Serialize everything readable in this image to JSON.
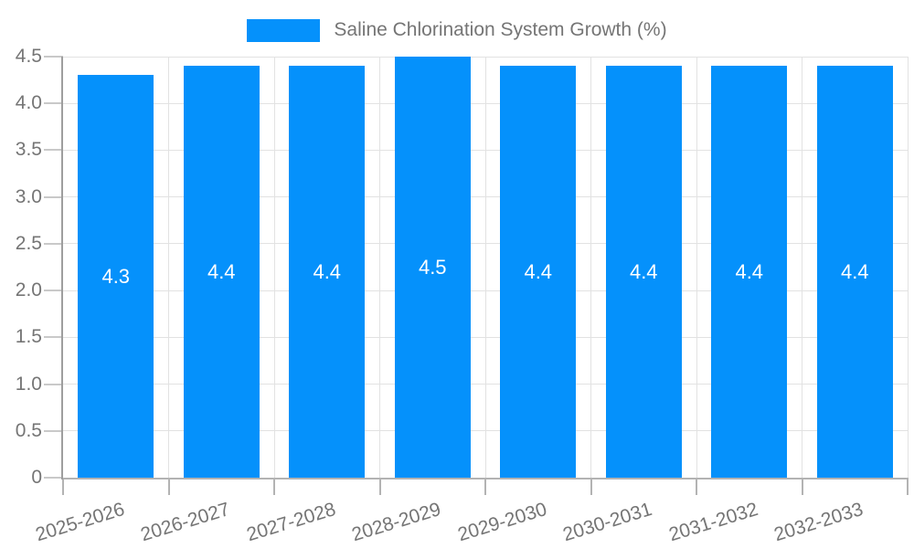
{
  "chart_data": {
    "type": "bar",
    "title": "Saline Chlorination System Growth (%)",
    "legend": {
      "position": "top-center"
    },
    "categories": [
      "2025-2026",
      "2026-2027",
      "2027-2028",
      "2028-2029",
      "2029-2030",
      "2030-2031",
      "2031-2032",
      "2032-2033"
    ],
    "values": [
      4.3,
      4.4,
      4.4,
      4.5,
      4.4,
      4.4,
      4.4,
      4.4
    ],
    "bar_labels": [
      "4.3",
      "4.4",
      "4.4",
      "4.5",
      "4.4",
      "4.4",
      "4.4",
      "4.4"
    ],
    "xlabel": "",
    "ylabel": "",
    "ylim": [
      0,
      4.5
    ],
    "ytick_step": 0.5,
    "ytick_labels": [
      "0",
      "0.5",
      "1.0",
      "1.5",
      "2.0",
      "2.5",
      "3.0",
      "3.5",
      "4.0",
      "4.5"
    ],
    "grid": true,
    "colors": {
      "bar": "#0591fb",
      "bar_label_text": "#ffffff",
      "axis_text": "#757575",
      "gridline": "#e2e2e2",
      "y_axis_line": "#9e9e9e",
      "x_axis_line": "#b3b3b3",
      "tick": "#c9c9c9",
      "background": "#ffffff"
    }
  }
}
